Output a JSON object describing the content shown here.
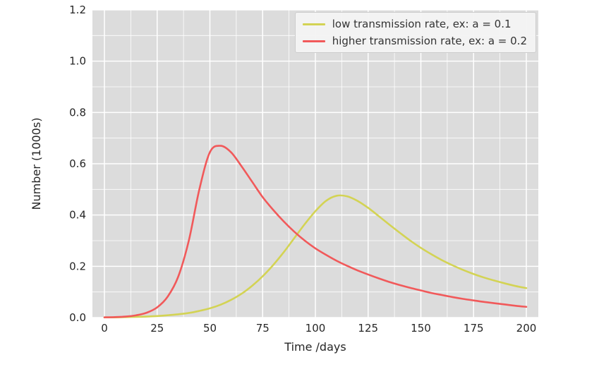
{
  "figure": {
    "background": "#ffffff",
    "plot_bg": "#dcdcdc",
    "grid_color": "#ffffff",
    "text_color": "#262626",
    "xlabel": "Time /days",
    "ylabel": "Number (1000s)",
    "x_ticks": [
      0,
      25,
      50,
      75,
      100,
      125,
      150,
      175,
      200
    ],
    "y_ticks": [
      "0.0",
      "0.2",
      "0.4",
      "0.6",
      "0.8",
      "1.0",
      "1.2"
    ]
  },
  "legend": {
    "items": [
      {
        "label": "low transmission rate, ex: a = 0.1",
        "color": "#d3d354"
      },
      {
        "label": "higher transmission rate, ex: a = 0.2",
        "color": "#f1595a"
      }
    ]
  },
  "chart_data": {
    "type": "line",
    "title": "",
    "xlabel": "Time /days",
    "ylabel": "Number (1000s)",
    "xlim": [
      0,
      200
    ],
    "ylim": [
      0,
      1.2
    ],
    "grid": true,
    "x_minor_step": 12.5,
    "y_minor_step": 0.1,
    "legend_position": "upper right",
    "x": [
      0,
      5,
      10,
      15,
      20,
      25,
      30,
      35,
      40,
      45,
      50,
      55,
      60,
      65,
      70,
      75,
      80,
      85,
      90,
      95,
      100,
      105,
      110,
      115,
      120,
      125,
      130,
      135,
      140,
      145,
      150,
      155,
      160,
      165,
      170,
      175,
      180,
      185,
      190,
      195,
      200
    ],
    "series": [
      {
        "name": "low transmission rate, ex: a = 0.1",
        "color": "#d3d354",
        "values": [
          0.001,
          0.001,
          0.002,
          0.003,
          0.004,
          0.006,
          0.009,
          0.013,
          0.018,
          0.026,
          0.036,
          0.05,
          0.069,
          0.093,
          0.124,
          0.161,
          0.205,
          0.255,
          0.31,
          0.365,
          0.415,
          0.455,
          0.475,
          0.473,
          0.455,
          0.428,
          0.396,
          0.363,
          0.331,
          0.3,
          0.272,
          0.247,
          0.224,
          0.204,
          0.186,
          0.17,
          0.156,
          0.144,
          0.133,
          0.123,
          0.115
        ]
      },
      {
        "name": "higher transmission rate, ex: a = 0.2",
        "color": "#f1595a",
        "values": [
          0.001,
          0.002,
          0.004,
          0.009,
          0.019,
          0.04,
          0.082,
          0.16,
          0.3,
          0.5,
          0.645,
          0.67,
          0.645,
          0.59,
          0.53,
          0.47,
          0.42,
          0.375,
          0.335,
          0.3,
          0.27,
          0.245,
          0.222,
          0.202,
          0.184,
          0.168,
          0.153,
          0.139,
          0.127,
          0.116,
          0.106,
          0.096,
          0.088,
          0.08,
          0.073,
          0.067,
          0.061,
          0.056,
          0.051,
          0.046,
          0.042
        ]
      }
    ]
  }
}
